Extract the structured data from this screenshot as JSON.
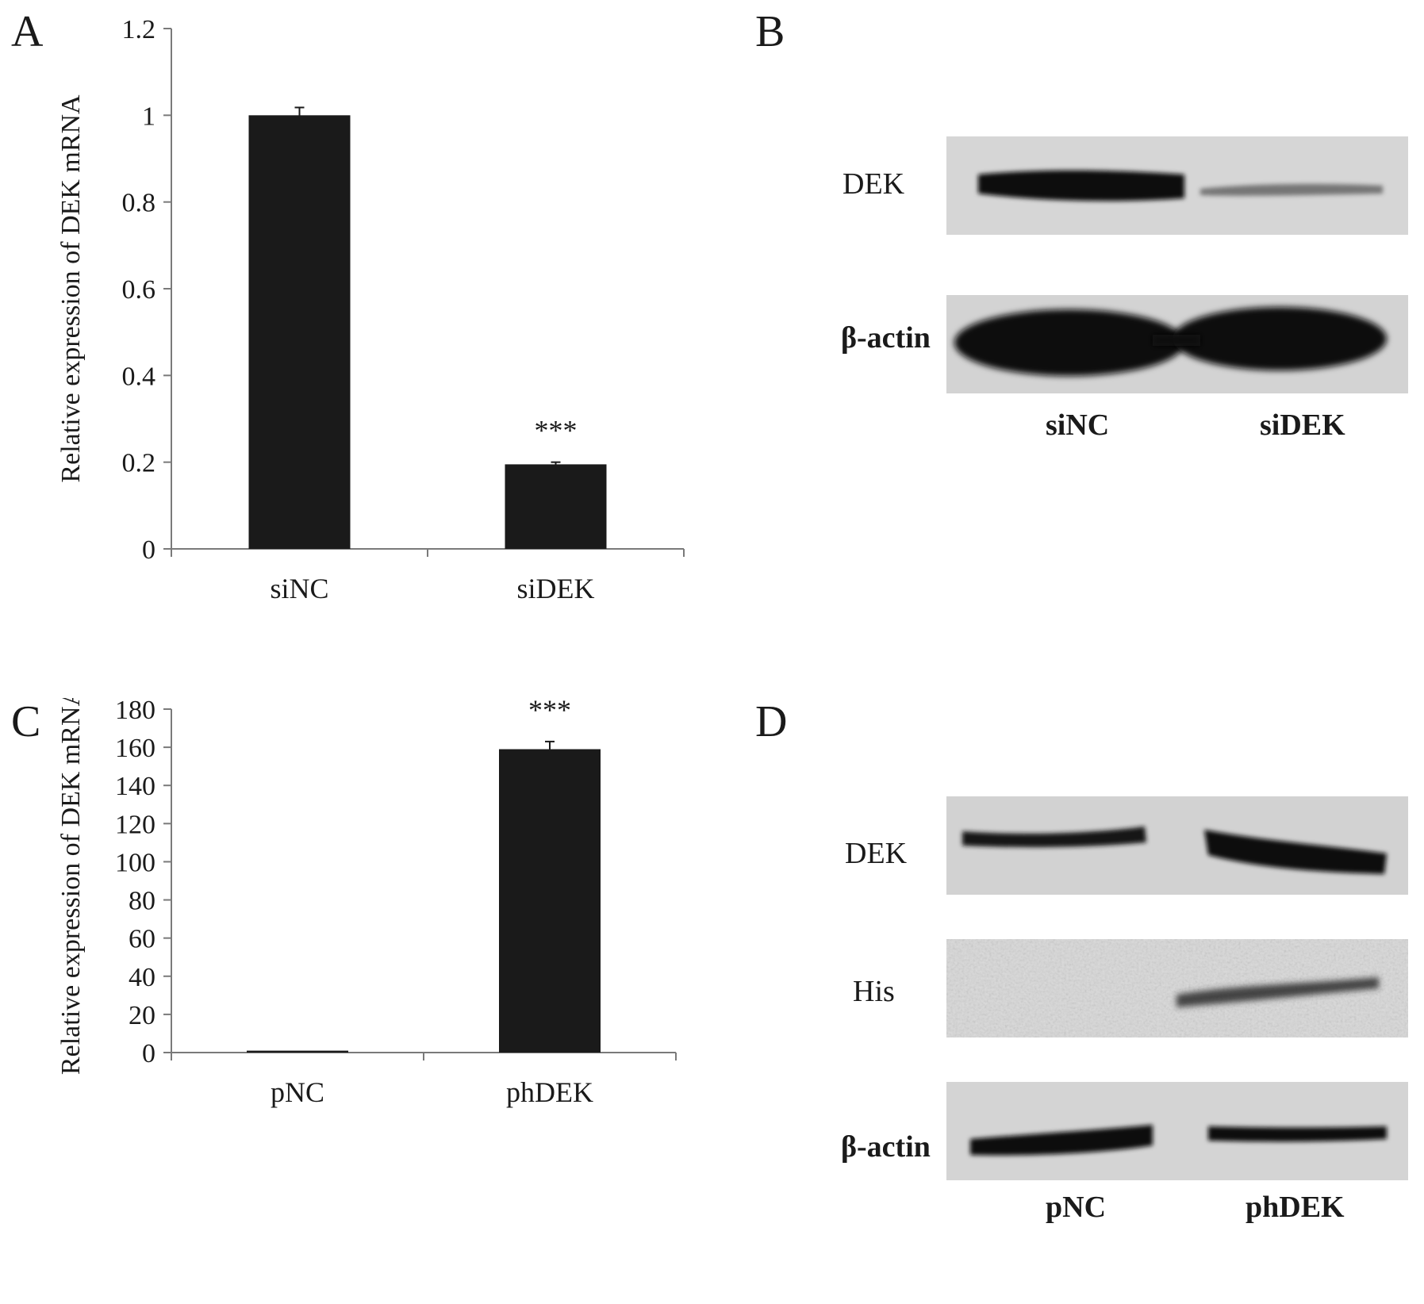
{
  "panels": {
    "a": {
      "letter": "A"
    },
    "b": {
      "letter": "B"
    },
    "c": {
      "letter": "C"
    },
    "d": {
      "letter": "D"
    }
  },
  "chart_data": [
    {
      "type": "bar",
      "panel": "A",
      "categories": [
        "siNC",
        "siDEK"
      ],
      "values": [
        1.0,
        0.195
      ],
      "errors": [
        0.018,
        0.005
      ],
      "ylabel": "Relative expression of DEK mRNA",
      "ylim": [
        0,
        1.2
      ],
      "yticks": [
        "0",
        "0.2",
        "0.4",
        "0.6",
        "0.8",
        "1",
        "1.2"
      ],
      "annotations": [
        "",
        "***"
      ],
      "bar_color": "#1a1a1a",
      "grid": false
    },
    {
      "type": "bar",
      "panel": "C",
      "categories": [
        "pNC",
        "phDEK"
      ],
      "values": [
        1,
        159
      ],
      "errors": [
        0,
        4
      ],
      "ylabel": "Relative expression of DEK mRNA",
      "ylim": [
        0,
        180
      ],
      "yticks": [
        "0",
        "20",
        "40",
        "60",
        "80",
        "100",
        "120",
        "140",
        "160",
        "180"
      ],
      "annotations": [
        "",
        "***"
      ],
      "bar_color": "#1a1a1a",
      "grid": false
    }
  ],
  "blots": {
    "b": {
      "rows": [
        "DEK",
        "β-actin"
      ],
      "lanes": [
        "siNC",
        "siDEK"
      ]
    },
    "d": {
      "rows": [
        "DEK",
        "His",
        "β-actin"
      ],
      "lanes": [
        "pNC",
        "phDEK"
      ]
    }
  }
}
